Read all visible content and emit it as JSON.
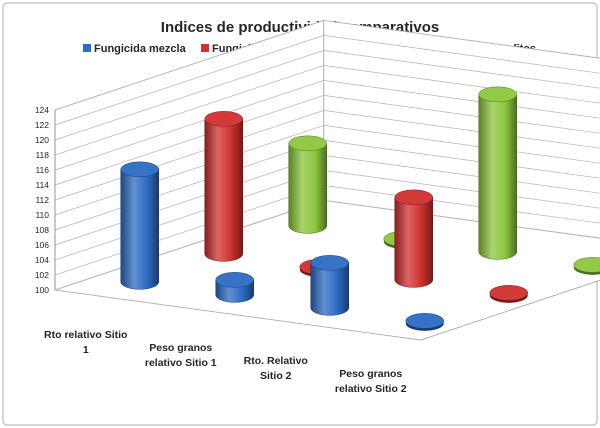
{
  "chart_data": {
    "type": "bar",
    "title": "Indices de productividad comparativos",
    "categories": [
      "Rto relativo Sitio 1",
      "Peso granos relativo Sitio 1",
      "Rto. Relativo Sitio 2",
      "Peso granos relativo Sitio 2"
    ],
    "series": [
      {
        "name": "Fungicida mezcla",
        "values": [
          115,
          102,
          106,
          100
        ]
      },
      {
        "name": "Fungicida mezcla+Cobrestable®",
        "values": [
          118,
          100,
          111,
          100
        ]
      },
      {
        "name": "Cobrestable® con fosfitos",
        "values": [
          111,
          100,
          121,
          100
        ]
      }
    ],
    "yticks": [
      100,
      102,
      104,
      106,
      108,
      110,
      112,
      114,
      116,
      118,
      120,
      122,
      124
    ],
    "ylim": [
      100,
      124
    ],
    "grid": true,
    "legend": "top",
    "colors": [
      "#2e6bc4",
      "#d03030",
      "#8cc63e"
    ]
  }
}
